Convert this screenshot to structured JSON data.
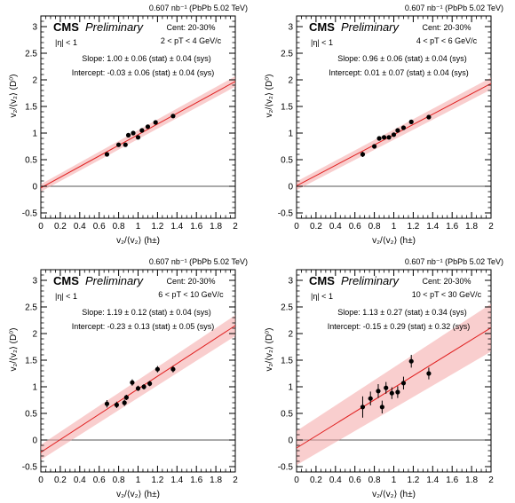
{
  "chart_data": [
    {
      "type": "scatter",
      "lumi": "0.607 nb⁻¹ (PbPb 5.02 TeV)",
      "experiment": "CMS",
      "status": "Preliminary",
      "eta_cut": "|η| < 1",
      "centrality": "Cent: 20-30%",
      "pt_bin": "2 < pT < 4 GeV/c",
      "slope_text": "Slope: 1.00 ± 0.06 (stat) ± 0.04 (sys)",
      "intercept_text": "Intercept: -0.03 ± 0.06 (stat) ± 0.04 (sys)",
      "xlabel": "v₂/⟨v₂⟩ (h±)",
      "ylabel": "v₂/⟨v₂⟩ (D⁰)",
      "xlim": [
        0,
        2
      ],
      "ylim": [
        -0.6,
        3.2
      ],
      "x_ticks": [
        "0",
        "0.2",
        "0.4",
        "0.6",
        "0.8",
        "1",
        "1.2",
        "1.4",
        "1.6",
        "1.8",
        "2"
      ],
      "y_ticks": [
        "-0.5",
        "0",
        "0.5",
        "1",
        "1.5",
        "2",
        "2.5",
        "3"
      ],
      "fit": {
        "slope": 1.0,
        "intercept": -0.03,
        "band": 0.07
      },
      "points": [
        {
          "x": 0.68,
          "y": 0.6,
          "err": 0.04
        },
        {
          "x": 0.8,
          "y": 0.78,
          "err": 0.03
        },
        {
          "x": 0.87,
          "y": 0.78,
          "err": 0.03
        },
        {
          "x": 0.9,
          "y": 0.96,
          "err": 0.03
        },
        {
          "x": 0.95,
          "y": 1.0,
          "err": 0.03
        },
        {
          "x": 1.0,
          "y": 0.92,
          "err": 0.03
        },
        {
          "x": 1.04,
          "y": 1.05,
          "err": 0.03
        },
        {
          "x": 1.1,
          "y": 1.12,
          "err": 0.03
        },
        {
          "x": 1.18,
          "y": 1.2,
          "err": 0.03
        },
        {
          "x": 1.36,
          "y": 1.32,
          "err": 0.03
        }
      ]
    },
    {
      "type": "scatter",
      "lumi": "0.607 nb⁻¹ (PbPb 5.02 TeV)",
      "experiment": "CMS",
      "status": "Preliminary",
      "eta_cut": "|η| < 1",
      "centrality": "Cent: 20-30%",
      "pt_bin": "4 < pT < 6 GeV/c",
      "slope_text": "Slope: 0.96 ± 0.06 (stat) ± 0.04 (sys)",
      "intercept_text": "Intercept: 0.01 ± 0.07 (stat) ± 0.04 (sys)",
      "xlabel": "v₂/⟨v₂⟩ (h±)",
      "ylabel": "v₂/⟨v₂⟩ (D⁰)",
      "xlim": [
        0,
        2
      ],
      "ylim": [
        -0.6,
        3.2
      ],
      "x_ticks": [
        "0",
        "0.2",
        "0.4",
        "0.6",
        "0.8",
        "1",
        "1.2",
        "1.4",
        "1.6",
        "1.8",
        "2"
      ],
      "y_ticks": [
        "-0.5",
        "0",
        "0.5",
        "1",
        "1.5",
        "2",
        "2.5",
        "3"
      ],
      "fit": {
        "slope": 0.96,
        "intercept": 0.01,
        "band": 0.08
      },
      "points": [
        {
          "x": 0.68,
          "y": 0.6,
          "err": 0.05
        },
        {
          "x": 0.8,
          "y": 0.75,
          "err": 0.03
        },
        {
          "x": 0.85,
          "y": 0.9,
          "err": 0.03
        },
        {
          "x": 0.9,
          "y": 0.92,
          "err": 0.03
        },
        {
          "x": 0.95,
          "y": 0.92,
          "err": 0.03
        },
        {
          "x": 1.0,
          "y": 0.97,
          "err": 0.03
        },
        {
          "x": 1.04,
          "y": 1.05,
          "err": 0.03
        },
        {
          "x": 1.1,
          "y": 1.1,
          "err": 0.03
        },
        {
          "x": 1.18,
          "y": 1.21,
          "err": 0.03
        },
        {
          "x": 1.36,
          "y": 1.3,
          "err": 0.03
        }
      ]
    },
    {
      "type": "scatter",
      "lumi": "0.607 nb⁻¹ (PbPb 5.02 TeV)",
      "experiment": "CMS",
      "status": "Preliminary",
      "eta_cut": "|η| < 1",
      "centrality": "Cent: 20-30%",
      "pt_bin": "6 < pT < 10 GeV/c",
      "slope_text": "Slope: 1.19 ± 0.12 (stat) ± 0.04 (sys)",
      "intercept_text": "Intercept: -0.23 ± 0.13 (stat) ± 0.05 (sys)",
      "xlabel": "v₂/⟨v₂⟩ (h±)",
      "ylabel": "v₂/⟨v₂⟩ (D⁰)",
      "xlim": [
        0,
        2
      ],
      "ylim": [
        -0.6,
        3.2
      ],
      "x_ticks": [
        "0",
        "0.2",
        "0.4",
        "0.6",
        "0.8",
        "1",
        "1.2",
        "1.4",
        "1.6",
        "1.8",
        "2"
      ],
      "y_ticks": [
        "-0.5",
        "0",
        "0.5",
        "1",
        "1.5",
        "2",
        "2.5",
        "3"
      ],
      "fit": {
        "slope": 1.19,
        "intercept": -0.23,
        "band": 0.14
      },
      "points": [
        {
          "x": 0.68,
          "y": 0.68,
          "err": 0.07
        },
        {
          "x": 0.78,
          "y": 0.66,
          "err": 0.06
        },
        {
          "x": 0.86,
          "y": 0.7,
          "err": 0.06
        },
        {
          "x": 0.88,
          "y": 0.8,
          "err": 0.05
        },
        {
          "x": 0.94,
          "y": 1.08,
          "err": 0.06
        },
        {
          "x": 1.0,
          "y": 0.97,
          "err": 0.05
        },
        {
          "x": 1.06,
          "y": 1.0,
          "err": 0.05
        },
        {
          "x": 1.12,
          "y": 1.06,
          "err": 0.05
        },
        {
          "x": 1.2,
          "y": 1.33,
          "err": 0.06
        },
        {
          "x": 1.36,
          "y": 1.33,
          "err": 0.06
        }
      ]
    },
    {
      "type": "scatter",
      "lumi": "0.607 nb⁻¹ (PbPb 5.02 TeV)",
      "experiment": "CMS",
      "status": "Preliminary",
      "eta_cut": "|η| < 1",
      "centrality": "Cent: 20-30%",
      "pt_bin": "10 < pT < 30 GeV/c",
      "slope_text": "Slope: 1.13 ± 0.27 (stat) ± 0.34 (sys)",
      "intercept_text": "Intercept: -0.15 ± 0.29 (stat) ± 0.32 (sys)",
      "xlabel": "v₂/⟨v₂⟩ (h±)",
      "ylabel": "v₂/⟨v₂⟩ (D⁰)",
      "xlim": [
        0,
        2
      ],
      "ylim": [
        -0.6,
        3.2
      ],
      "x_ticks": [
        "0",
        "0.2",
        "0.4",
        "0.6",
        "0.8",
        "1",
        "1.2",
        "1.4",
        "1.6",
        "1.8",
        "2"
      ],
      "y_ticks": [
        "-0.5",
        "0",
        "0.5",
        "1",
        "1.5",
        "2",
        "2.5",
        "3"
      ],
      "fit": {
        "slope": 1.13,
        "intercept": -0.15,
        "band": 0.32
      },
      "points": [
        {
          "x": 0.68,
          "y": 0.62,
          "err": 0.2
        },
        {
          "x": 0.76,
          "y": 0.78,
          "err": 0.13
        },
        {
          "x": 0.84,
          "y": 0.92,
          "err": 0.13
        },
        {
          "x": 0.88,
          "y": 0.62,
          "err": 0.12
        },
        {
          "x": 0.92,
          "y": 0.98,
          "err": 0.11
        },
        {
          "x": 0.98,
          "y": 0.88,
          "err": 0.11
        },
        {
          "x": 1.04,
          "y": 0.9,
          "err": 0.11
        },
        {
          "x": 1.1,
          "y": 1.07,
          "err": 0.12
        },
        {
          "x": 1.18,
          "y": 1.48,
          "err": 0.12
        },
        {
          "x": 1.36,
          "y": 1.25,
          "err": 0.11
        }
      ]
    }
  ]
}
